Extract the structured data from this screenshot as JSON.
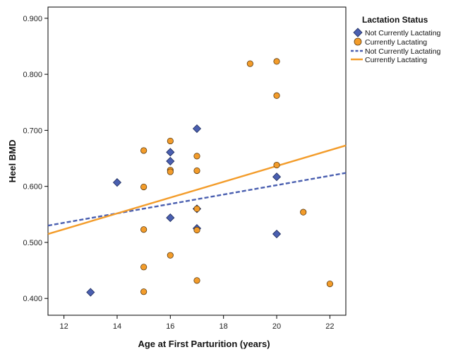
{
  "chart_data": {
    "type": "scatter",
    "xlabel": "Age at First Parturition (years)",
    "ylabel": "Heel BMD",
    "xlim": [
      11.4,
      22.6
    ],
    "ylim": [
      0.37,
      0.92
    ],
    "xticks": [
      "12",
      "14",
      "16",
      "18",
      "20",
      "22"
    ],
    "yticks": [
      "0.400",
      "0.500",
      "0.600",
      "0.700",
      "0.800",
      "0.900"
    ],
    "grid": false,
    "legend_position": "right-top",
    "legend_title": "Lactation Status",
    "series": [
      {
        "name": "Not Currently Lactating",
        "marker": "diamond",
        "color": "#4a5fb0",
        "points": [
          [
            13,
            0.411
          ],
          [
            14,
            0.607
          ],
          [
            16,
            0.661
          ],
          [
            16,
            0.645
          ],
          [
            16,
            0.544
          ],
          [
            17,
            0.703
          ],
          [
            17,
            0.56
          ],
          [
            17,
            0.525
          ],
          [
            20,
            0.617
          ],
          [
            20,
            0.515
          ]
        ]
      },
      {
        "name": "Currently Lactating",
        "marker": "circle",
        "color": "#f39c2a",
        "points": [
          [
            15,
            0.664
          ],
          [
            15,
            0.599
          ],
          [
            15,
            0.523
          ],
          [
            15,
            0.456
          ],
          [
            15,
            0.412
          ],
          [
            16,
            0.681
          ],
          [
            16,
            0.629
          ],
          [
            16,
            0.626
          ],
          [
            16,
            0.477
          ],
          [
            17,
            0.654
          ],
          [
            17,
            0.628
          ],
          [
            17,
            0.56
          ],
          [
            17,
            0.522
          ],
          [
            17,
            0.432
          ],
          [
            19,
            0.819
          ],
          [
            20,
            0.823
          ],
          [
            20,
            0.762
          ],
          [
            20,
            0.638
          ],
          [
            21,
            0.554
          ],
          [
            22,
            0.426
          ]
        ]
      }
    ],
    "fit_lines": [
      {
        "name": "Not Currently Lactating",
        "style": "dashed",
        "color": "#4a5fb0",
        "x": [
          11.4,
          22.6
        ],
        "y": [
          0.53,
          0.624
        ]
      },
      {
        "name": "Currently Lactating",
        "style": "solid",
        "color": "#f39c2a",
        "x": [
          11.4,
          22.6
        ],
        "y": [
          0.515,
          0.673
        ]
      }
    ]
  }
}
